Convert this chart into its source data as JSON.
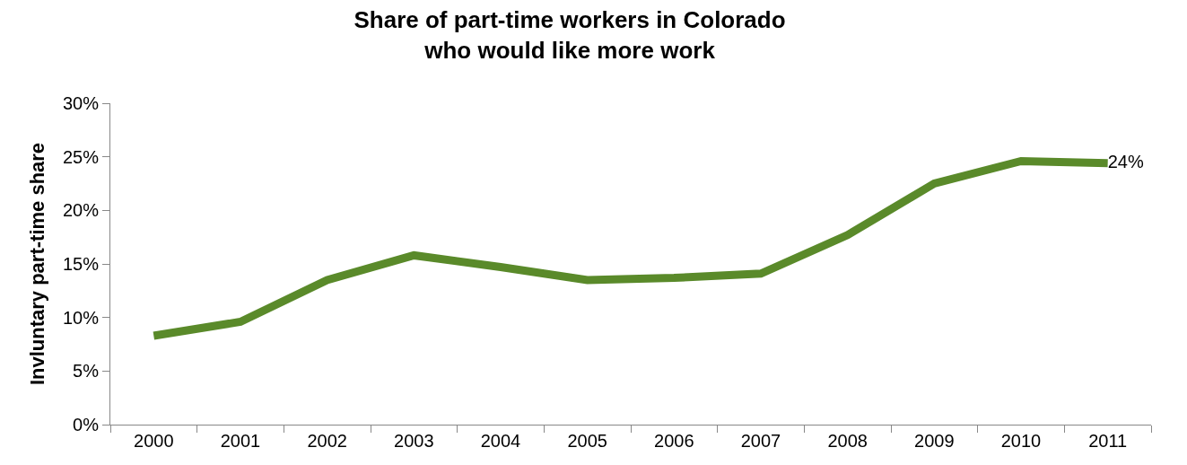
{
  "chart_data": {
    "type": "line",
    "title": "Share of part-time workers in Colorado\nwho would like more work",
    "ylabel": "Invluntary part-time share",
    "categories": [
      "2000",
      "2001",
      "2002",
      "2003",
      "2004",
      "2005",
      "2006",
      "2007",
      "2008",
      "2009",
      "2010",
      "2011"
    ],
    "series": [
      {
        "color": "#5a8a2a",
        "values": [
          8.3,
          9.6,
          13.5,
          15.8,
          14.7,
          13.5,
          13.7,
          14.1,
          17.7,
          22.5,
          24.6,
          24.4
        ],
        "value_labels": [
          null,
          null,
          null,
          null,
          null,
          null,
          null,
          null,
          null,
          null,
          null,
          "24%"
        ]
      }
    ],
    "ylim": [
      0,
      30
    ],
    "yticks": [
      {
        "value": 0,
        "label": "0%"
      },
      {
        "value": 5,
        "label": "5%"
      },
      {
        "value": 10,
        "label": "10%"
      },
      {
        "value": 15,
        "label": "15%"
      },
      {
        "value": 20,
        "label": "20%"
      },
      {
        "value": 25,
        "label": "25%"
      },
      {
        "value": 30,
        "label": "30%"
      }
    ],
    "marker": "none",
    "line_style": "solid"
  }
}
